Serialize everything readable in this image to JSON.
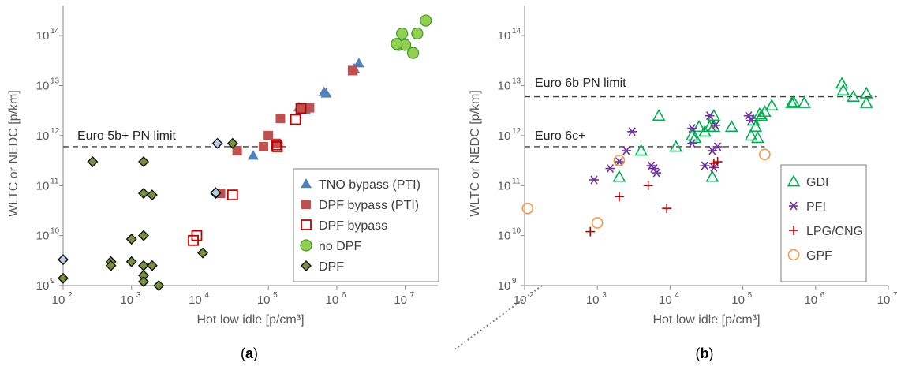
{
  "chart_data": [
    {
      "panel": "a",
      "caption": {
        "open": "(",
        "letter": "a",
        "close": ")"
      },
      "type": "scatter",
      "xlabel": "Hot low idle [p/cm³]",
      "ylabel": "WLTC or NEDC [p/km]",
      "xscale": "log",
      "yscale": "log",
      "xlim": [
        100,
        30000000
      ],
      "ylim": [
        1000000000,
        400000000000000
      ],
      "x_ticks": [
        {
          "base": "10",
          "exp": "2"
        },
        {
          "base": "10",
          "exp": "3"
        },
        {
          "base": "10",
          "exp": "4"
        },
        {
          "base": "10",
          "exp": "5"
        },
        {
          "base": "10",
          "exp": "6"
        },
        {
          "base": "10",
          "exp": "7"
        }
      ],
      "y_ticks": [
        {
          "base": "10",
          "exp": "9"
        },
        {
          "base": "10",
          "exp": "10"
        },
        {
          "base": "10",
          "exp": "11"
        },
        {
          "base": "10",
          "exp": "12"
        },
        {
          "base": "10",
          "exp": "13"
        },
        {
          "base": "10",
          "exp": "14"
        }
      ],
      "limits": [
        {
          "label": "Euro 5b+ PN limit",
          "value": 600000000000,
          "x_end": 200000
        }
      ],
      "legend_position": "bottom-right",
      "series": [
        {
          "name": "TNO bypass (PTI)",
          "marker": "triangle-filled",
          "color": "#4f81bd",
          "points": [
            [
              60000,
              400000000000
            ],
            [
              280000,
              3700000000000
            ],
            [
              350000,
              3200000000000
            ],
            [
              650000,
              7500000000000
            ],
            [
              700000,
              7000000000000
            ],
            [
              1800000,
              22000000000000
            ],
            [
              2100000,
              28000000000000
            ]
          ]
        },
        {
          "name": "DPF bypass (PTI)",
          "marker": "square-filled",
          "color": "#c0504d",
          "points": [
            [
              20000,
              70000000000
            ],
            [
              35000,
              500000000000
            ],
            [
              85000,
              600000000000
            ],
            [
              100000,
              1000000000000
            ],
            [
              150000,
              2200000000000
            ],
            [
              300000,
              3500000000000
            ],
            [
              400000,
              3600000000000
            ],
            [
              130000,
              700000000000
            ],
            [
              1700000,
              20000000000000
            ]
          ]
        },
        {
          "name": "DPF bypass",
          "marker": "square-open",
          "color": "#c00000",
          "points": [
            [
              8000,
              8000000000
            ],
            [
              9000,
              10000000000
            ],
            [
              30000,
              65000000000
            ],
            [
              130000,
              650000000000
            ],
            [
              135000,
              600000000000
            ],
            [
              250000,
              2100000000000
            ],
            [
              300000,
              3500000000000
            ]
          ]
        },
        {
          "name": "no DPF",
          "marker": "circle-filled",
          "color": "#92d050",
          "points": [
            [
              8000000,
              65000000000000
            ],
            [
              9000000,
              110000000000000
            ],
            [
              10000000,
              65000000000000
            ],
            [
              13000000,
              45000000000000
            ],
            [
              15000000,
              110000000000000
            ],
            [
              20000000,
              200000000000000
            ],
            [
              7500000,
              68000000000000
            ]
          ]
        },
        {
          "name": "DPF",
          "marker": "diamond-filled",
          "color": "#76933c",
          "points": [
            [
              100,
              1400000000
            ],
            [
              270,
              300000000000
            ],
            [
              500,
              3000000000
            ],
            [
              500,
              2500000000
            ],
            [
              1000,
              8500000000
            ],
            [
              1000,
              3000000000
            ],
            [
              1500,
              300000000000
            ],
            [
              1500,
              70000000000
            ],
            [
              1500,
              10000000000
            ],
            [
              1500,
              2500000000
            ],
            [
              1500,
              1600000000
            ],
            [
              1500,
              1200000000
            ],
            [
              2000,
              65000000000
            ],
            [
              2000,
              2500000000
            ],
            [
              2500,
              1000000000
            ],
            [
              11000,
              4500000000
            ],
            [
              30000,
              700000000000
            ],
            [
              17000,
              70000000000
            ]
          ]
        },
        {
          "name": "",
          "marker": "diamond-filled",
          "color": "#b8cce4",
          "points": [
            [
              100,
              3300000000
            ],
            [
              18000,
              700000000000
            ],
            [
              17000,
              72000000000
            ]
          ]
        }
      ]
    },
    {
      "panel": "b",
      "caption": {
        "open": "(",
        "letter": "b",
        "close": ")"
      },
      "type": "scatter",
      "xlabel": "Hot low idle [p/cm³]",
      "ylabel": "WLTC or NEDC [p/km]",
      "xscale": "log",
      "yscale": "log",
      "xlim": [
        100,
        10000000
      ],
      "ylim": [
        1000000000,
        400000000000000
      ],
      "x_ticks": [
        {
          "base": "10",
          "exp": "2"
        },
        {
          "base": "10",
          "exp": "3"
        },
        {
          "base": "10",
          "exp": "4"
        },
        {
          "base": "10",
          "exp": "5"
        },
        {
          "base": "10",
          "exp": "6"
        },
        {
          "base": "10",
          "exp": "7"
        }
      ],
      "y_ticks": [
        {
          "base": "10",
          "exp": "9"
        },
        {
          "base": "10",
          "exp": "10"
        },
        {
          "base": "10",
          "exp": "11"
        },
        {
          "base": "10",
          "exp": "12"
        },
        {
          "base": "10",
          "exp": "13"
        },
        {
          "base": "10",
          "exp": "14"
        }
      ],
      "limits": [
        {
          "label": "Euro 6b PN limit",
          "value": 6000000000000,
          "x_end": 7000000
        },
        {
          "label": "Euro 6c+",
          "value": 600000000000,
          "x_end": 200000
        }
      ],
      "legend_position": "bottom-right",
      "series": [
        {
          "name": "GDI",
          "marker": "triangle-open",
          "color": "#00b050",
          "points": [
            [
              2000,
              150000000000
            ],
            [
              4000,
              500000000000
            ],
            [
              7000,
              2500000000000
            ],
            [
              12000,
              600000000000
            ],
            [
              20000,
              1000000000000
            ],
            [
              22000,
              900000000000
            ],
            [
              25000,
              1500000000000
            ],
            [
              30000,
              1200000000000
            ],
            [
              35000,
              1500000000000
            ],
            [
              38000,
              150000000000
            ],
            [
              40000,
              2500000000000
            ],
            [
              40000,
              1500000000000
            ],
            [
              70000,
              1500000000000
            ],
            [
              130000,
              1000000000000
            ],
            [
              140000,
              2000000000000
            ],
            [
              150000,
              1500000000000
            ],
            [
              160000,
              900000000000
            ],
            [
              170000,
              2700000000000
            ],
            [
              180000,
              2500000000000
            ],
            [
              200000,
              3000000000000
            ],
            [
              250000,
              4000000000000
            ],
            [
              470000,
              4500000000000
            ],
            [
              500000,
              4700000000000
            ],
            [
              700000,
              4500000000000
            ],
            [
              2300000,
              11000000000000
            ],
            [
              2400000,
              8000000000000
            ],
            [
              3300000,
              6000000000000
            ],
            [
              5000000,
              7000000000000
            ],
            [
              5000000,
              4500000000000
            ]
          ]
        },
        {
          "name": "PFI",
          "marker": "asterisk",
          "color": "#7030a0",
          "points": [
            [
              900,
              130000000000
            ],
            [
              1500,
              220000000000
            ],
            [
              2000,
              300000000000
            ],
            [
              2500,
              500000000000
            ],
            [
              3000,
              1200000000000
            ],
            [
              5500,
              250000000000
            ],
            [
              6000,
              220000000000
            ],
            [
              6500,
              180000000000
            ],
            [
              20000,
              700000000000
            ],
            [
              20000,
              1400000000000
            ],
            [
              30000,
              250000000000
            ],
            [
              35000,
              2500000000000
            ],
            [
              38000,
              500000000000
            ],
            [
              40000,
              230000000000
            ],
            [
              42000,
              1600000000000
            ],
            [
              45000,
              600000000000
            ],
            [
              120000,
              2500000000000
            ],
            [
              130000,
              2000000000000
            ]
          ]
        },
        {
          "name": "LPG/CNG",
          "marker": "plus",
          "color": "#c00000",
          "points": [
            [
              800,
              12000000000
            ],
            [
              2000,
              60000000000
            ],
            [
              5000,
              100000000000
            ],
            [
              9000,
              35000000000
            ],
            [
              40000,
              280000000000
            ],
            [
              45000,
              300000000000
            ]
          ]
        },
        {
          "name": "GPF",
          "marker": "circle-open",
          "color": "#f79646",
          "points": [
            [
              110,
              35000000000
            ],
            [
              1000,
              18000000000
            ],
            [
              2000,
              320000000000
            ],
            [
              200000,
              420000000000
            ]
          ]
        }
      ]
    }
  ]
}
